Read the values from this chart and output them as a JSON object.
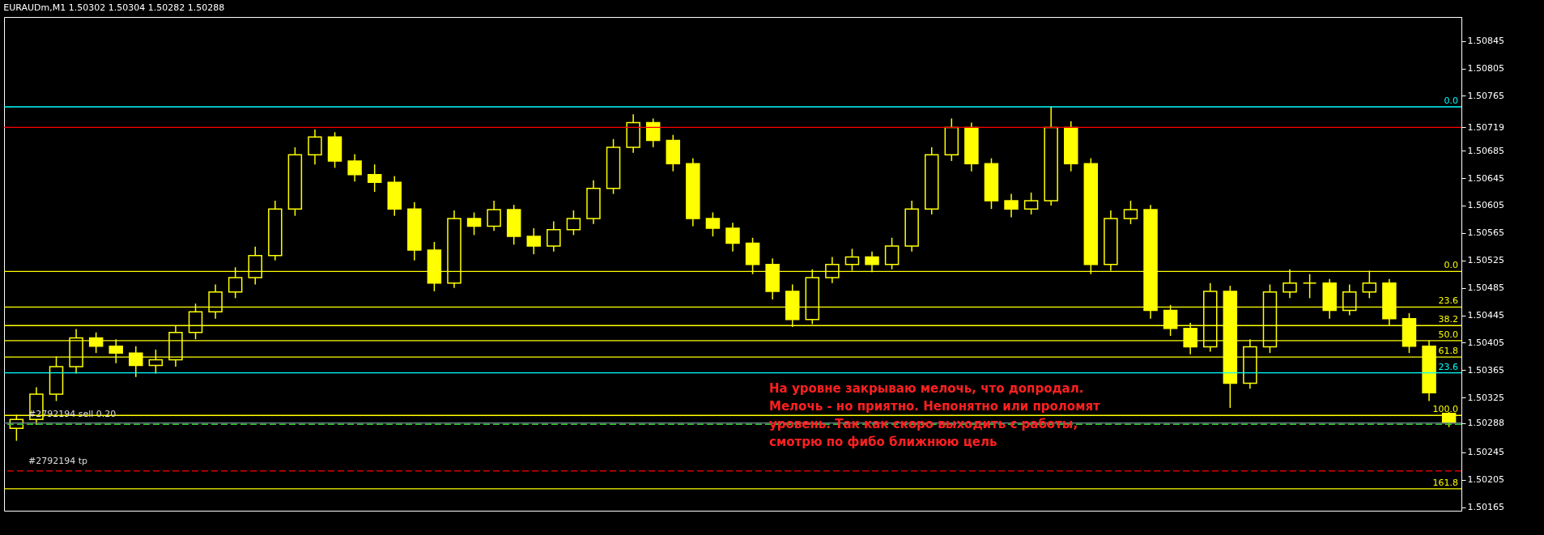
{
  "chart_data": {
    "type": "candlestick",
    "title": "EURAUDm,M1  1.50302 1.50304 1.50282 1.50288",
    "categories": [
      null,
      null,
      null,
      null,
      null,
      null,
      null,
      null,
      null,
      null,
      null,
      null,
      null,
      null,
      null,
      null,
      null,
      null,
      null,
      null,
      null,
      null,
      null,
      null,
      null,
      null,
      null,
      null,
      null,
      null,
      null,
      null,
      null,
      null,
      null,
      null,
      null,
      null,
      null,
      null,
      null,
      null,
      null,
      null,
      null,
      null,
      null,
      null,
      null,
      null,
      null,
      null,
      null,
      null,
      null,
      null,
      null,
      null,
      null,
      null,
      null,
      null,
      null,
      null,
      null,
      null,
      null,
      null,
      null,
      null,
      null,
      null,
      null
    ],
    "series": [
      {
        "color": "#ffff00",
        "ohlc": [
          [
            1.5028,
            1.503,
            1.50262,
            1.50293
          ],
          [
            1.50293,
            1.5034,
            1.50285,
            1.5033
          ],
          [
            1.5033,
            1.50385,
            1.5032,
            1.5037
          ],
          [
            1.5037,
            1.50425,
            1.5036,
            1.50412
          ],
          [
            1.50412,
            1.5042,
            1.5039,
            1.504
          ],
          [
            1.504,
            1.5041,
            1.50375,
            1.5039
          ],
          [
            1.5039,
            1.504,
            1.50355,
            1.50372
          ],
          [
            1.50372,
            1.50395,
            1.5036,
            1.5038
          ],
          [
            1.5038,
            1.5043,
            1.5037,
            1.5042
          ],
          [
            1.5042,
            1.50462,
            1.5041,
            1.5045
          ],
          [
            1.5045,
            1.5049,
            1.5044,
            1.50479
          ],
          [
            1.50479,
            1.50515,
            1.5047,
            1.505
          ],
          [
            1.505,
            1.50545,
            1.5049,
            1.50532
          ],
          [
            1.50532,
            1.50612,
            1.50525,
            1.506
          ],
          [
            1.506,
            1.5069,
            1.5059,
            1.50679
          ],
          [
            1.50679,
            1.50716,
            1.50665,
            1.50705
          ],
          [
            1.50705,
            1.50712,
            1.5066,
            1.5067
          ],
          [
            1.5067,
            1.5068,
            1.5064,
            1.5065
          ],
          [
            1.5065,
            1.50665,
            1.50625,
            1.50639
          ],
          [
            1.50639,
            1.50648,
            1.5059,
            1.506
          ],
          [
            1.506,
            1.5061,
            1.50525,
            1.5054
          ],
          [
            1.5054,
            1.50552,
            1.5048,
            1.50492
          ],
          [
            1.50492,
            1.50598,
            1.50485,
            1.50586
          ],
          [
            1.50586,
            1.50595,
            1.50562,
            1.50575
          ],
          [
            1.50575,
            1.50612,
            1.50568,
            1.50599
          ],
          [
            1.50599,
            1.50606,
            1.50548,
            1.5056
          ],
          [
            1.5056,
            1.50572,
            1.50534,
            1.50546
          ],
          [
            1.50546,
            1.50582,
            1.50538,
            1.5057
          ],
          [
            1.5057,
            1.50598,
            1.50562,
            1.50586
          ],
          [
            1.50586,
            1.50642,
            1.50578,
            1.5063
          ],
          [
            1.5063,
            1.50702,
            1.50622,
            1.5069
          ],
          [
            1.5069,
            1.50738,
            1.50682,
            1.50726
          ],
          [
            1.50726,
            1.50732,
            1.5069,
            1.507
          ],
          [
            1.507,
            1.50708,
            1.50655,
            1.50666
          ],
          [
            1.50666,
            1.50674,
            1.50575,
            1.50586
          ],
          [
            1.50586,
            1.50595,
            1.5056,
            1.50572
          ],
          [
            1.50572,
            1.5058,
            1.50538,
            1.5055
          ],
          [
            1.5055,
            1.50558,
            1.50505,
            1.50519
          ],
          [
            1.50519,
            1.50528,
            1.50468,
            1.5048
          ],
          [
            1.5048,
            1.5049,
            1.50428,
            1.50439
          ],
          [
            1.50439,
            1.50512,
            1.50432,
            1.505
          ],
          [
            1.505,
            1.5053,
            1.50492,
            1.50519
          ],
          [
            1.50519,
            1.50542,
            1.5051,
            1.5053
          ],
          [
            1.5053,
            1.50538,
            1.50508,
            1.50519
          ],
          [
            1.50519,
            1.50558,
            1.50512,
            1.50546
          ],
          [
            1.50546,
            1.50612,
            1.50538,
            1.506
          ],
          [
            1.506,
            1.5069,
            1.50592,
            1.50679
          ],
          [
            1.50679,
            1.50732,
            1.5067,
            1.50719
          ],
          [
            1.50719,
            1.50726,
            1.50655,
            1.50666
          ],
          [
            1.50666,
            1.50674,
            1.506,
            1.50612
          ],
          [
            1.50612,
            1.50622,
            1.50588,
            1.506
          ],
          [
            1.506,
            1.50624,
            1.50592,
            1.50612
          ],
          [
            1.50612,
            1.5075,
            1.50605,
            1.50719
          ],
          [
            1.50719,
            1.50728,
            1.50655,
            1.50666
          ],
          [
            1.50666,
            1.50674,
            1.50505,
            1.50519
          ],
          [
            1.50519,
            1.50598,
            1.5051,
            1.50586
          ],
          [
            1.50586,
            1.50612,
            1.50578,
            1.50599
          ],
          [
            1.50599,
            1.50606,
            1.5044,
            1.50452
          ],
          [
            1.50452,
            1.5046,
            1.50415,
            1.50426
          ],
          [
            1.50426,
            1.50434,
            1.50388,
            1.50399
          ],
          [
            1.50399,
            1.50492,
            1.50392,
            1.5048
          ],
          [
            1.5048,
            1.50488,
            1.5031,
            1.50346
          ],
          [
            1.50346,
            1.5041,
            1.50338,
            1.50399
          ],
          [
            1.50399,
            1.5049,
            1.5039,
            1.50479
          ],
          [
            1.50479,
            1.50512,
            1.5047,
            1.50492
          ],
          [
            1.50492,
            1.50505,
            1.5047,
            1.50492
          ],
          [
            1.50492,
            1.50498,
            1.5044,
            1.50452
          ],
          [
            1.50452,
            1.5049,
            1.50445,
            1.50479
          ],
          [
            1.50479,
            1.5051,
            1.5047,
            1.50492
          ],
          [
            1.50492,
            1.50498,
            1.5043,
            1.5044
          ],
          [
            1.5044,
            1.50448,
            1.5039,
            1.504
          ],
          [
            1.504,
            1.50408,
            1.5032,
            1.50332
          ],
          [
            1.50302,
            1.50304,
            1.50282,
            1.50288
          ]
        ]
      }
    ],
    "ylim": [
      1.5016,
      1.5088
    ],
    "yticks": [
      1.50165,
      1.50205,
      1.50245,
      1.50288,
      1.50325,
      1.50365,
      1.50405,
      1.50445,
      1.50485,
      1.50525,
      1.50565,
      1.50605,
      1.50645,
      1.50685,
      1.50719,
      1.50765,
      1.50805,
      1.50845
    ],
    "ref_lines": [
      {
        "axis": "y",
        "value": 1.50749,
        "color": "#00ffff",
        "line_style": "solid"
      },
      {
        "axis": "y",
        "value": 1.50719,
        "color": "#ff0000",
        "line_style": "solid"
      },
      {
        "axis": "y",
        "value": 1.50509,
        "color": "#ffff00",
        "line_style": "solid"
      },
      {
        "axis": "y",
        "value": 1.50457,
        "color": "#ffff00",
        "line_style": "solid"
      },
      {
        "axis": "y",
        "value": 1.5043,
        "color": "#ffff00",
        "line_style": "solid"
      },
      {
        "axis": "y",
        "value": 1.50408,
        "color": "#ffff00",
        "line_style": "solid"
      },
      {
        "axis": "y",
        "value": 1.50384,
        "color": "#ffff00",
        "line_style": "solid"
      },
      {
        "axis": "y",
        "value": 1.50361,
        "color": "#00ffff",
        "line_style": "solid"
      },
      {
        "axis": "y",
        "value": 1.50299,
        "color": "#ffff00",
        "line_style": "solid"
      },
      {
        "axis": "y",
        "value": 1.50288,
        "color": "#778899",
        "line_style": "solid"
      },
      {
        "axis": "y",
        "value": 1.50286,
        "label": "#2792194 sell 0.20",
        "color": "#32cd32",
        "line_style": "dashed"
      },
      {
        "axis": "y",
        "value": 1.50218,
        "label": "#2792194 tp",
        "color": "#ff0000",
        "line_style": "dashed"
      },
      {
        "axis": "y",
        "value": 1.50192,
        "color": "#ffff00",
        "line_style": "solid"
      }
    ],
    "annotations": [
      {
        "text": "0.0",
        "y": 1.50749
      },
      {
        "text": "0.0",
        "y": 1.50509
      },
      {
        "text": "23.6",
        "y": 1.50457
      },
      {
        "text": "38.2",
        "y": 1.5043
      },
      {
        "text": "50.0",
        "y": 1.50408
      },
      {
        "text": "61.8",
        "y": 1.50384
      },
      {
        "text": "23.6",
        "y": 1.50361
      },
      {
        "text": "100.0",
        "y": 1.50299
      },
      {
        "text": "161.8",
        "y": 1.50192
      },
      "На уровне закрываю мелочь, что допродал.\nМелочь - но приятно. Непонятно или проломят\nуровень. Так как скоро выходить с работы,\nсмотрю по фибо ближнюю цель"
    ],
    "grid": false
  }
}
